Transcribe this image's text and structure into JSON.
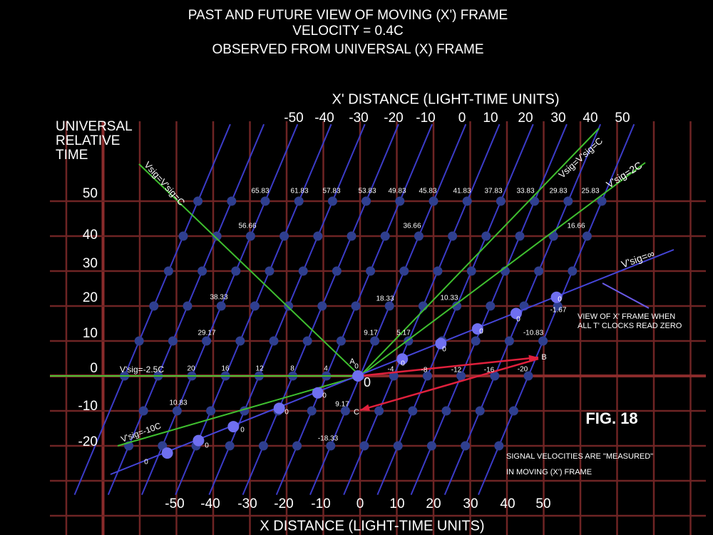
{
  "title": [
    "PAST AND FUTURE VIEW OF MOVING (X') FRAME",
    "VELOCITY = 0.4C",
    "OBSERVED FROM UNIVERSAL (X) FRAME"
  ],
  "x_prime_axis": {
    "label": "X'  DISTANCE (LIGHT-TIME UNITS)",
    "ticks": [
      -50,
      -40,
      -30,
      -20,
      -10,
      0,
      10,
      20,
      30,
      40,
      50
    ]
  },
  "x_axis": {
    "label": "X DISTANCE (LIGHT-TIME UNITS)",
    "ticks": [
      -50,
      -40,
      -30,
      -20,
      -10,
      0,
      10,
      20,
      30,
      40,
      50
    ]
  },
  "y_axis": {
    "label": [
      "UNIVERSAL",
      "RELATIVE",
      "TIME"
    ],
    "ticks": [
      50,
      40,
      30,
      20,
      10,
      0,
      -10,
      -20
    ]
  },
  "signal_lines": [
    "Vsig=V'sig=C",
    "Vsig=V'sig=C",
    "V'sig=2C",
    "V'sig=∞",
    "V'sig=-2.5C",
    "V'sig=-10C"
  ],
  "clock_readings": [
    65.83,
    61.83,
    57.83,
    53.83,
    49.83,
    45.83,
    41.83,
    37.83,
    33.83,
    29.83,
    25.83,
    56.66,
    36.66,
    16.66,
    38.33,
    18.33,
    10.33,
    29.17,
    9.17,
    5.17,
    -10.83,
    20,
    16,
    12,
    8,
    4,
    0,
    -4,
    -8,
    -12,
    -16,
    -20,
    10.83,
    9.17,
    -18.33
  ],
  "simultaneity_readings": [
    0,
    0,
    0,
    0,
    0,
    0,
    0,
    0,
    0,
    0,
    -1.67
  ],
  "origin_label": 0,
  "points": [
    "A",
    "B",
    "C"
  ],
  "annotations": [
    "VIEW OF X' FRAME WHEN",
    "ALL T' CLOCKS READ ZERO",
    "SIGNAL VELOCITIES ARE \"MEASURED\"",
    "IN  MOVING (X') FRAME"
  ],
  "figure_label": "FIG. 18"
}
